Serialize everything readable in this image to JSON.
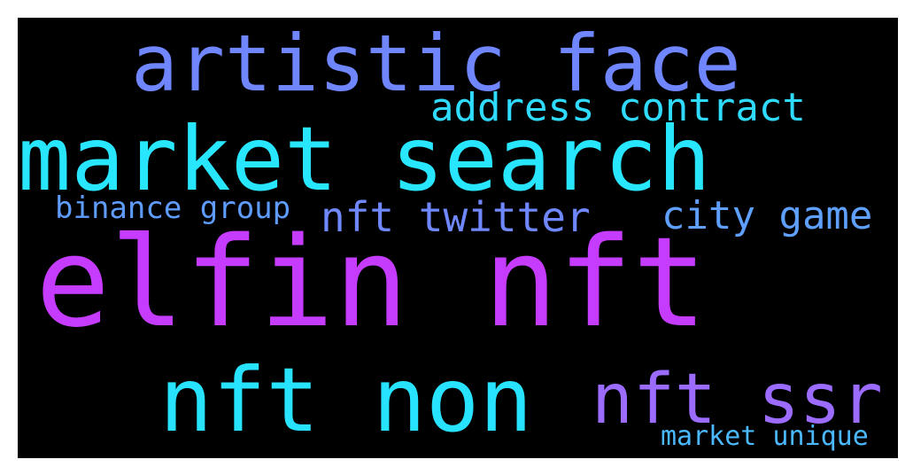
{
  "background_color": "#000000",
  "words": [
    {
      "text": "artistic face",
      "color": "#6f86ff"
    },
    {
      "text": "market search",
      "color": "#29e6ff"
    },
    {
      "text": "address contract",
      "color": "#2fdcff"
    },
    {
      "text": "binance group",
      "color": "#5f9cff"
    },
    {
      "text": "nft twitter",
      "color": "#6f88ff"
    },
    {
      "text": "city game",
      "color": "#5fa0ff"
    },
    {
      "text": "elfin nft",
      "color": "#c63cff"
    },
    {
      "text": "nft non",
      "color": "#27e3ff"
    },
    {
      "text": "nft ssr",
      "color": "#9b6cff"
    },
    {
      "text": "market unique",
      "color": "#4bb9ff"
    }
  ]
}
